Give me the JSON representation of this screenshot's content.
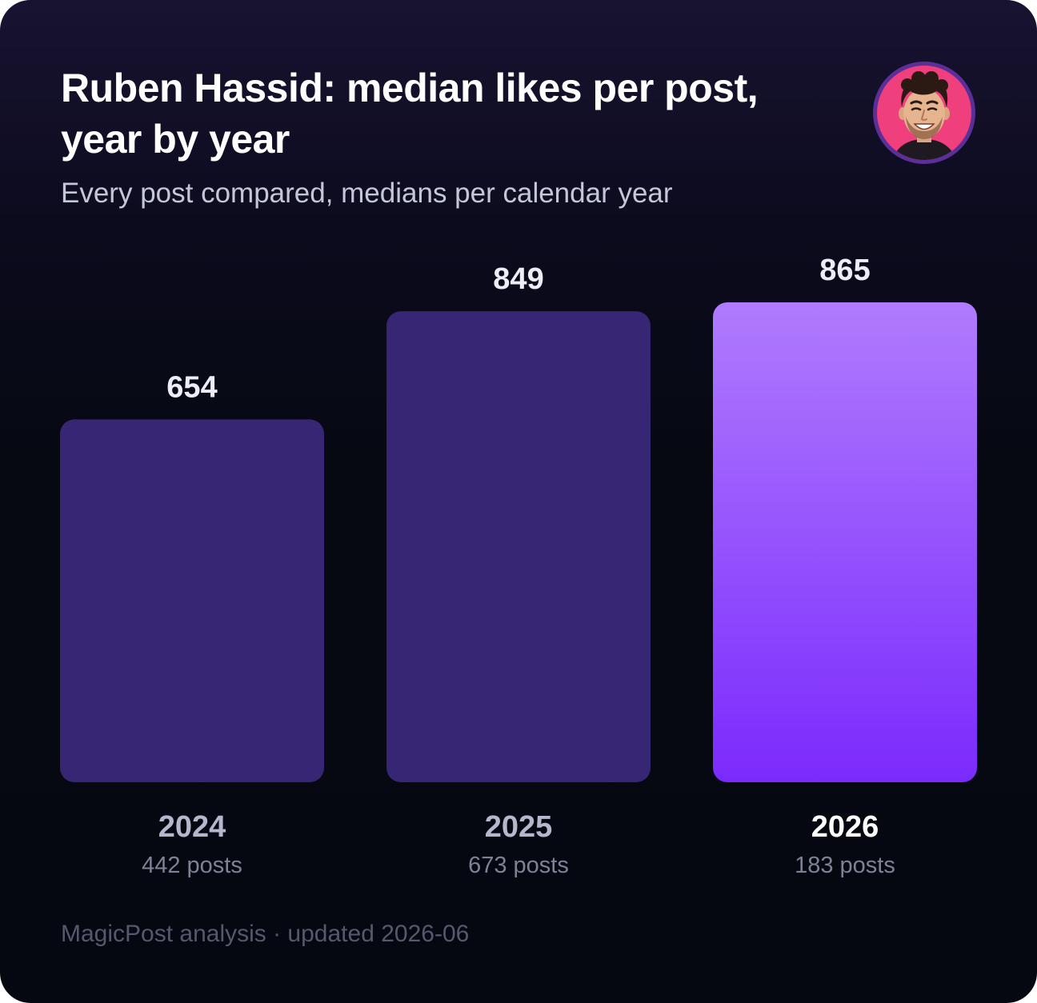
{
  "header": {
    "title": "Ruben Hassid: median likes per post, year by year",
    "subtitle": "Every post compared, medians per calendar year",
    "avatar_icon": "person-avatar-icon"
  },
  "footer": {
    "text": "MagicPost analysis · updated 2026-06"
  },
  "colors": {
    "background_top": "#181331",
    "background_bottom": "#050811",
    "bar_base": "#372673",
    "bar_highlight_top": "#b07bfd",
    "bar_highlight_bottom": "#7b2afd",
    "value_label": "#ecedf6",
    "year_label": "#b5b8cc",
    "year_label_highlight": "#ffffff",
    "posts_label": "#7d8296",
    "avatar_ring": "#5b2f98",
    "avatar_fill": "#ef3f7c"
  },
  "chart_data": {
    "type": "bar",
    "title": "Ruben Hassid: median likes per post, year by year",
    "subtitle": "Every post compared, medians per calendar year",
    "categories": [
      "2024",
      "2025",
      "2026"
    ],
    "values": [
      654,
      849,
      865
    ],
    "value_labels": [
      "654",
      "849",
      "865"
    ],
    "sublabels": [
      "442 posts",
      "673 posts",
      "183 posts"
    ],
    "highlight_index": 2,
    "ylim": [
      0,
      865
    ],
    "grid": false,
    "legend": "none"
  }
}
